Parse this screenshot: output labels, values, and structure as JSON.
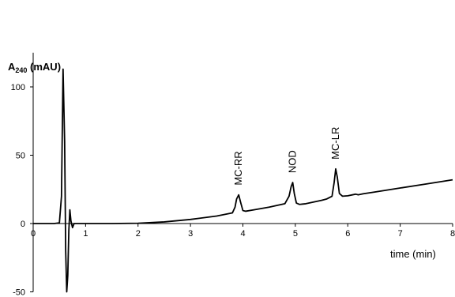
{
  "chart_data": {
    "type": "line",
    "title": "",
    "ylabel": "A240 (mAU)",
    "ylabel_main": "A",
    "ylabel_sub": "240",
    "ylabel_unit": " (mAU)",
    "xlabel": "time (min)",
    "xlim": [
      0,
      8
    ],
    "ylim": [
      -50,
      125
    ],
    "x_ticks": [
      0,
      1,
      2,
      3,
      4,
      5,
      6,
      7,
      8
    ],
    "y_ticks": [
      -50,
      0,
      50,
      100
    ],
    "grid": false,
    "annotations": [
      {
        "text": "MC-RR",
        "x": 3.92,
        "y": 21
      },
      {
        "text": "NOD",
        "x": 4.95,
        "y": 30
      },
      {
        "text": "MC-LR",
        "x": 5.77,
        "y": 40
      }
    ],
    "series": [
      {
        "color": "#000000",
        "x": [
          0,
          0.4,
          0.5,
          0.54,
          0.57,
          0.6,
          0.62,
          0.64,
          0.66,
          0.68,
          0.7,
          0.72,
          0.75,
          0.78,
          0.8,
          0.85,
          0.9,
          1.0,
          1.5,
          2.0,
          2.5,
          3.0,
          3.5,
          3.8,
          3.85,
          3.88,
          3.92,
          3.96,
          4.0,
          4.05,
          4.2,
          4.5,
          4.8,
          4.88,
          4.92,
          4.95,
          4.98,
          5.02,
          5.08,
          5.2,
          5.5,
          5.6,
          5.7,
          5.74,
          5.77,
          5.8,
          5.84,
          5.9,
          6.0,
          6.15,
          6.2,
          6.3,
          6.5,
          7.0,
          7.5,
          8.0
        ],
        "y": [
          0,
          0,
          0.5,
          20,
          113,
          60,
          -20,
          -50,
          -38,
          -5,
          10,
          2,
          -3,
          0,
          0,
          0,
          0,
          0,
          0,
          0.2,
          1.2,
          3,
          5.5,
          7.8,
          12,
          18,
          21,
          15,
          9.5,
          9,
          10,
          12,
          14.5,
          20,
          27,
          30,
          22,
          15,
          14,
          14.5,
          17,
          18,
          20,
          30,
          40,
          34,
          22,
          20,
          20.3,
          21.5,
          21,
          21.8,
          23,
          26,
          29,
          32
        ]
      }
    ]
  }
}
